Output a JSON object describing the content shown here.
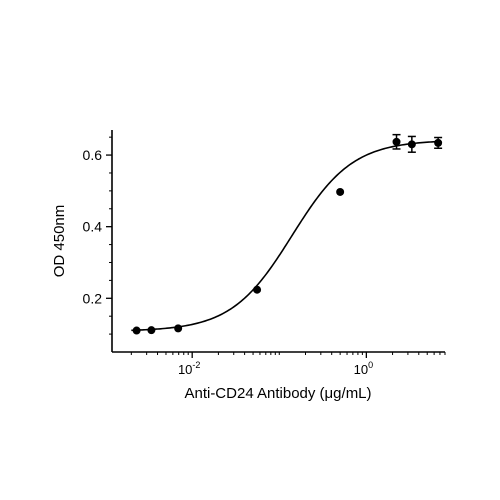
{
  "chart_data": {
    "type": "scatter",
    "title": "",
    "xlabel": "Anti-CD24 Antibody (μg/mL)",
    "ylabel": "OD 450nm",
    "xscale": "log",
    "xlim": [
      0.0012,
      8.0
    ],
    "ylim": [
      0.05,
      0.67
    ],
    "grid": false,
    "legend": "none",
    "x_ticks": [
      {
        "value": 0.01,
        "base": "10",
        "exp": "-2"
      },
      {
        "value": 1,
        "base": "10",
        "exp": "0"
      }
    ],
    "y_ticks": [
      {
        "value": 0.2,
        "label": "0.2"
      },
      {
        "value": 0.4,
        "label": "0.4"
      },
      {
        "value": 0.6,
        "label": "0.6"
      }
    ],
    "series": [
      {
        "points": [
          {
            "x": 0.0023,
            "y": 0.11,
            "err": 0.0
          },
          {
            "x": 0.0034,
            "y": 0.111,
            "err": 0.0
          },
          {
            "x": 0.0069,
            "y": 0.116,
            "err": 0.0
          },
          {
            "x": 0.0556,
            "y": 0.224,
            "err": 0.0
          },
          {
            "x": 0.5,
            "y": 0.497,
            "err": 0.0
          },
          {
            "x": 2.22,
            "y": 0.637,
            "err": 0.02
          },
          {
            "x": 3.33,
            "y": 0.63,
            "err": 0.022
          },
          {
            "x": 6.67,
            "y": 0.634,
            "err": 0.015
          }
        ]
      }
    ],
    "fit": {
      "type": "4PL",
      "bottom": 0.108,
      "top": 0.642,
      "ec50": 0.14,
      "hill": 1.25
    },
    "colors": {
      "axis": "#000000",
      "points": "#000000",
      "curve": "#000000"
    }
  }
}
